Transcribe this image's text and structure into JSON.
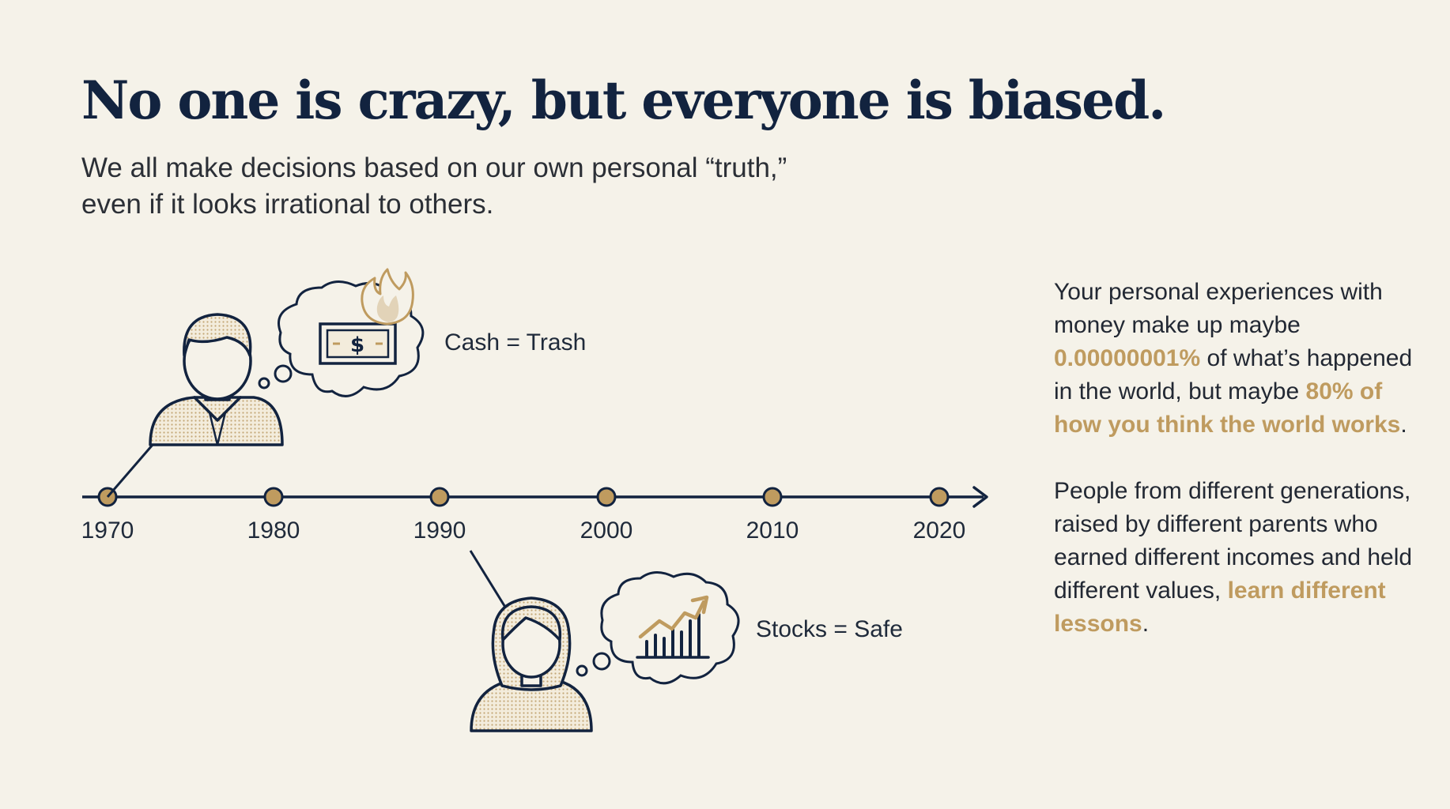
{
  "title": "No one is crazy, but everyone is biased.",
  "subtitle": {
    "line1": "We all make decisions based on our own personal “truth,”",
    "line2": "even if it looks irrational to others."
  },
  "timeline": {
    "years": [
      "1970",
      "1980",
      "1990",
      "2000",
      "2010",
      "2020"
    ]
  },
  "people": [
    {
      "belief": "Cash = Trash",
      "attached_year": "1970",
      "icons": [
        "man-icon",
        "cash-bill-icon",
        "flame-icon"
      ]
    },
    {
      "belief": "Stocks = Safe",
      "attached_year": "1990",
      "icons": [
        "woman-icon",
        "rising-chart-icon"
      ]
    }
  ],
  "side_text": {
    "p1": {
      "t1": "Your personal experiences with money make up maybe ",
      "h1": "0.00000001%",
      "t2": " of what’s happened in the world, but maybe ",
      "h2": "80% of how you think the world works",
      "t3": "."
    },
    "p2": {
      "t1": "People from different generations, raised by different parents who earned different incomes and held different values, ",
      "h1": "learn different lessons",
      "t2": "."
    }
  },
  "colors": {
    "background": "#f5f2e9",
    "navy": "#12233f",
    "gold": "#bf9b5f"
  }
}
